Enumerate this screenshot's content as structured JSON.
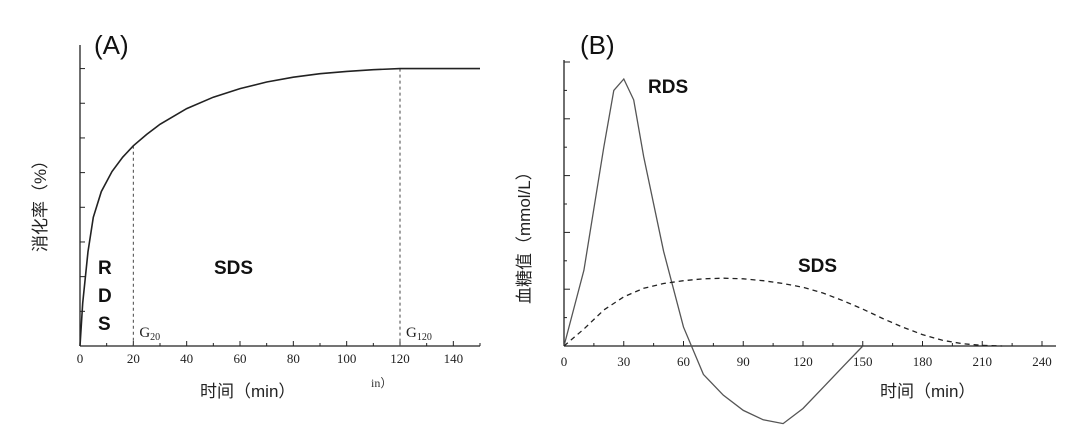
{
  "chart_data": [
    {
      "type": "line",
      "panel_label": "(A)",
      "ylabel": "消化率（%）",
      "xlabel": "时间（min）",
      "x_ticks": [
        0,
        20,
        40,
        60,
        80,
        100,
        120,
        140
      ],
      "xlim": [
        0,
        150
      ],
      "ylim": [
        0,
        100
      ],
      "y_minor_ticks": 8,
      "series": [
        {
          "name": "",
          "style": "solid",
          "x": [
            0,
            1,
            3,
            5,
            8,
            12,
            16,
            20,
            25,
            30,
            40,
            50,
            60,
            70,
            80,
            90,
            100,
            110,
            120,
            130,
            140,
            150
          ],
          "y": [
            0,
            15,
            33,
            45,
            54,
            61,
            66,
            70,
            74,
            77.5,
            83,
            87,
            90,
            92.3,
            94,
            95.2,
            96,
            96.6,
            97,
            97,
            97,
            97
          ]
        }
      ],
      "markers": [
        {
          "x": 20,
          "label": "G",
          "sub": "20"
        },
        {
          "x": 120,
          "label": "G",
          "sub": "120"
        }
      ],
      "regions": [
        {
          "label": "R D S",
          "lines": [
            "R",
            "D",
            "S"
          ]
        },
        {
          "label": "SDS"
        }
      ],
      "stray_text": "in）"
    },
    {
      "type": "line",
      "panel_label": "(B)",
      "ylabel": "血糖值（mmol/L）",
      "xlabel": "时间（min）",
      "x_ticks": [
        0,
        30,
        60,
        90,
        120,
        150,
        180,
        210,
        240
      ],
      "xlim": [
        0,
        250
      ],
      "ylim": [
        -4,
        15
      ],
      "y_minor_ticks": 9,
      "series": [
        {
          "name": "RDS",
          "style": "solid",
          "x": [
            0,
            10,
            20,
            25,
            30,
            35,
            40,
            50,
            60,
            70,
            80,
            90,
            100,
            110,
            120,
            130,
            140,
            150
          ],
          "y": [
            0,
            4,
            10.5,
            13.5,
            14.1,
            13,
            10,
            5,
            1,
            -1.5,
            -2.6,
            -3.4,
            -3.9,
            -4.1,
            -3.3,
            -2.2,
            -1.1,
            0
          ]
        },
        {
          "name": "SDS",
          "style": "dashed",
          "x": [
            0,
            10,
            20,
            30,
            40,
            50,
            60,
            70,
            80,
            90,
            100,
            110,
            120,
            130,
            140,
            150,
            160,
            170,
            180,
            190,
            200,
            210,
            220
          ],
          "y": [
            0,
            0.9,
            1.9,
            2.6,
            3.05,
            3.3,
            3.45,
            3.55,
            3.58,
            3.55,
            3.45,
            3.3,
            3.1,
            2.8,
            2.4,
            1.95,
            1.45,
            1.0,
            0.6,
            0.3,
            0.12,
            0.03,
            0
          ]
        }
      ]
    }
  ]
}
